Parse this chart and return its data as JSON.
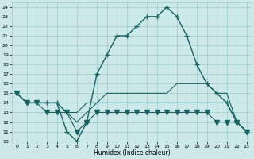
{
  "title": "",
  "xlabel": "Humidex (Indice chaleur)",
  "xlim": [
    -0.5,
    23.5
  ],
  "ylim": [
    10,
    24.5
  ],
  "yticks": [
    10,
    11,
    12,
    13,
    14,
    15,
    16,
    17,
    18,
    19,
    20,
    21,
    22,
    23,
    24
  ],
  "xticks": [
    0,
    1,
    2,
    3,
    4,
    5,
    6,
    7,
    8,
    9,
    10,
    11,
    12,
    13,
    14,
    15,
    16,
    17,
    18,
    19,
    20,
    21,
    22,
    23
  ],
  "background_color": "#cce8e8",
  "grid_color": "#99cccc",
  "line_color": "#1a6060",
  "series": [
    {
      "x": [
        0,
        1,
        2,
        3,
        4,
        5,
        6,
        7,
        8,
        9,
        10,
        11,
        12,
        13,
        14,
        15,
        16,
        17,
        18,
        19,
        20,
        21,
        22,
        23
      ],
      "y": [
        15,
        14,
        14,
        14,
        14,
        11,
        10,
        12,
        17,
        19,
        21,
        21,
        22,
        23,
        23,
        24,
        23,
        21,
        18,
        16,
        15,
        14,
        12,
        11
      ],
      "marker": "+",
      "markersize": 4,
      "linewidth": 1.0
    },
    {
      "x": [
        0,
        1,
        2,
        3,
        4,
        5,
        6,
        7,
        8,
        9,
        10,
        11,
        12,
        13,
        14,
        15,
        16,
        17,
        18,
        19,
        20,
        21,
        22,
        23
      ],
      "y": [
        15,
        14,
        14,
        14,
        14,
        13,
        13,
        14,
        14,
        15,
        15,
        15,
        15,
        15,
        15,
        15,
        16,
        16,
        16,
        16,
        15,
        15,
        12,
        11
      ],
      "marker": null,
      "markersize": 0,
      "linewidth": 0.8
    },
    {
      "x": [
        0,
        1,
        2,
        3,
        4,
        5,
        6,
        7,
        8,
        9,
        10,
        11,
        12,
        13,
        14,
        15,
        16,
        17,
        18,
        19,
        20,
        21,
        22,
        23
      ],
      "y": [
        15,
        14,
        14,
        14,
        14,
        13,
        12,
        13,
        14,
        14,
        14,
        14,
        14,
        14,
        14,
        14,
        14,
        14,
        14,
        14,
        14,
        14,
        12,
        11
      ],
      "marker": null,
      "markersize": 0,
      "linewidth": 0.8
    },
    {
      "x": [
        0,
        1,
        2,
        3,
        4,
        5,
        6,
        7,
        8,
        9,
        10,
        11,
        12,
        13,
        14,
        15,
        16,
        17,
        18,
        19,
        20,
        21,
        22,
        23
      ],
      "y": [
        15,
        14,
        14,
        13,
        13,
        13,
        11,
        12,
        13,
        13,
        13,
        13,
        13,
        13,
        13,
        13,
        13,
        13,
        13,
        13,
        12,
        12,
        12,
        11
      ],
      "marker": "v",
      "markersize": 4,
      "linewidth": 0.8
    }
  ]
}
